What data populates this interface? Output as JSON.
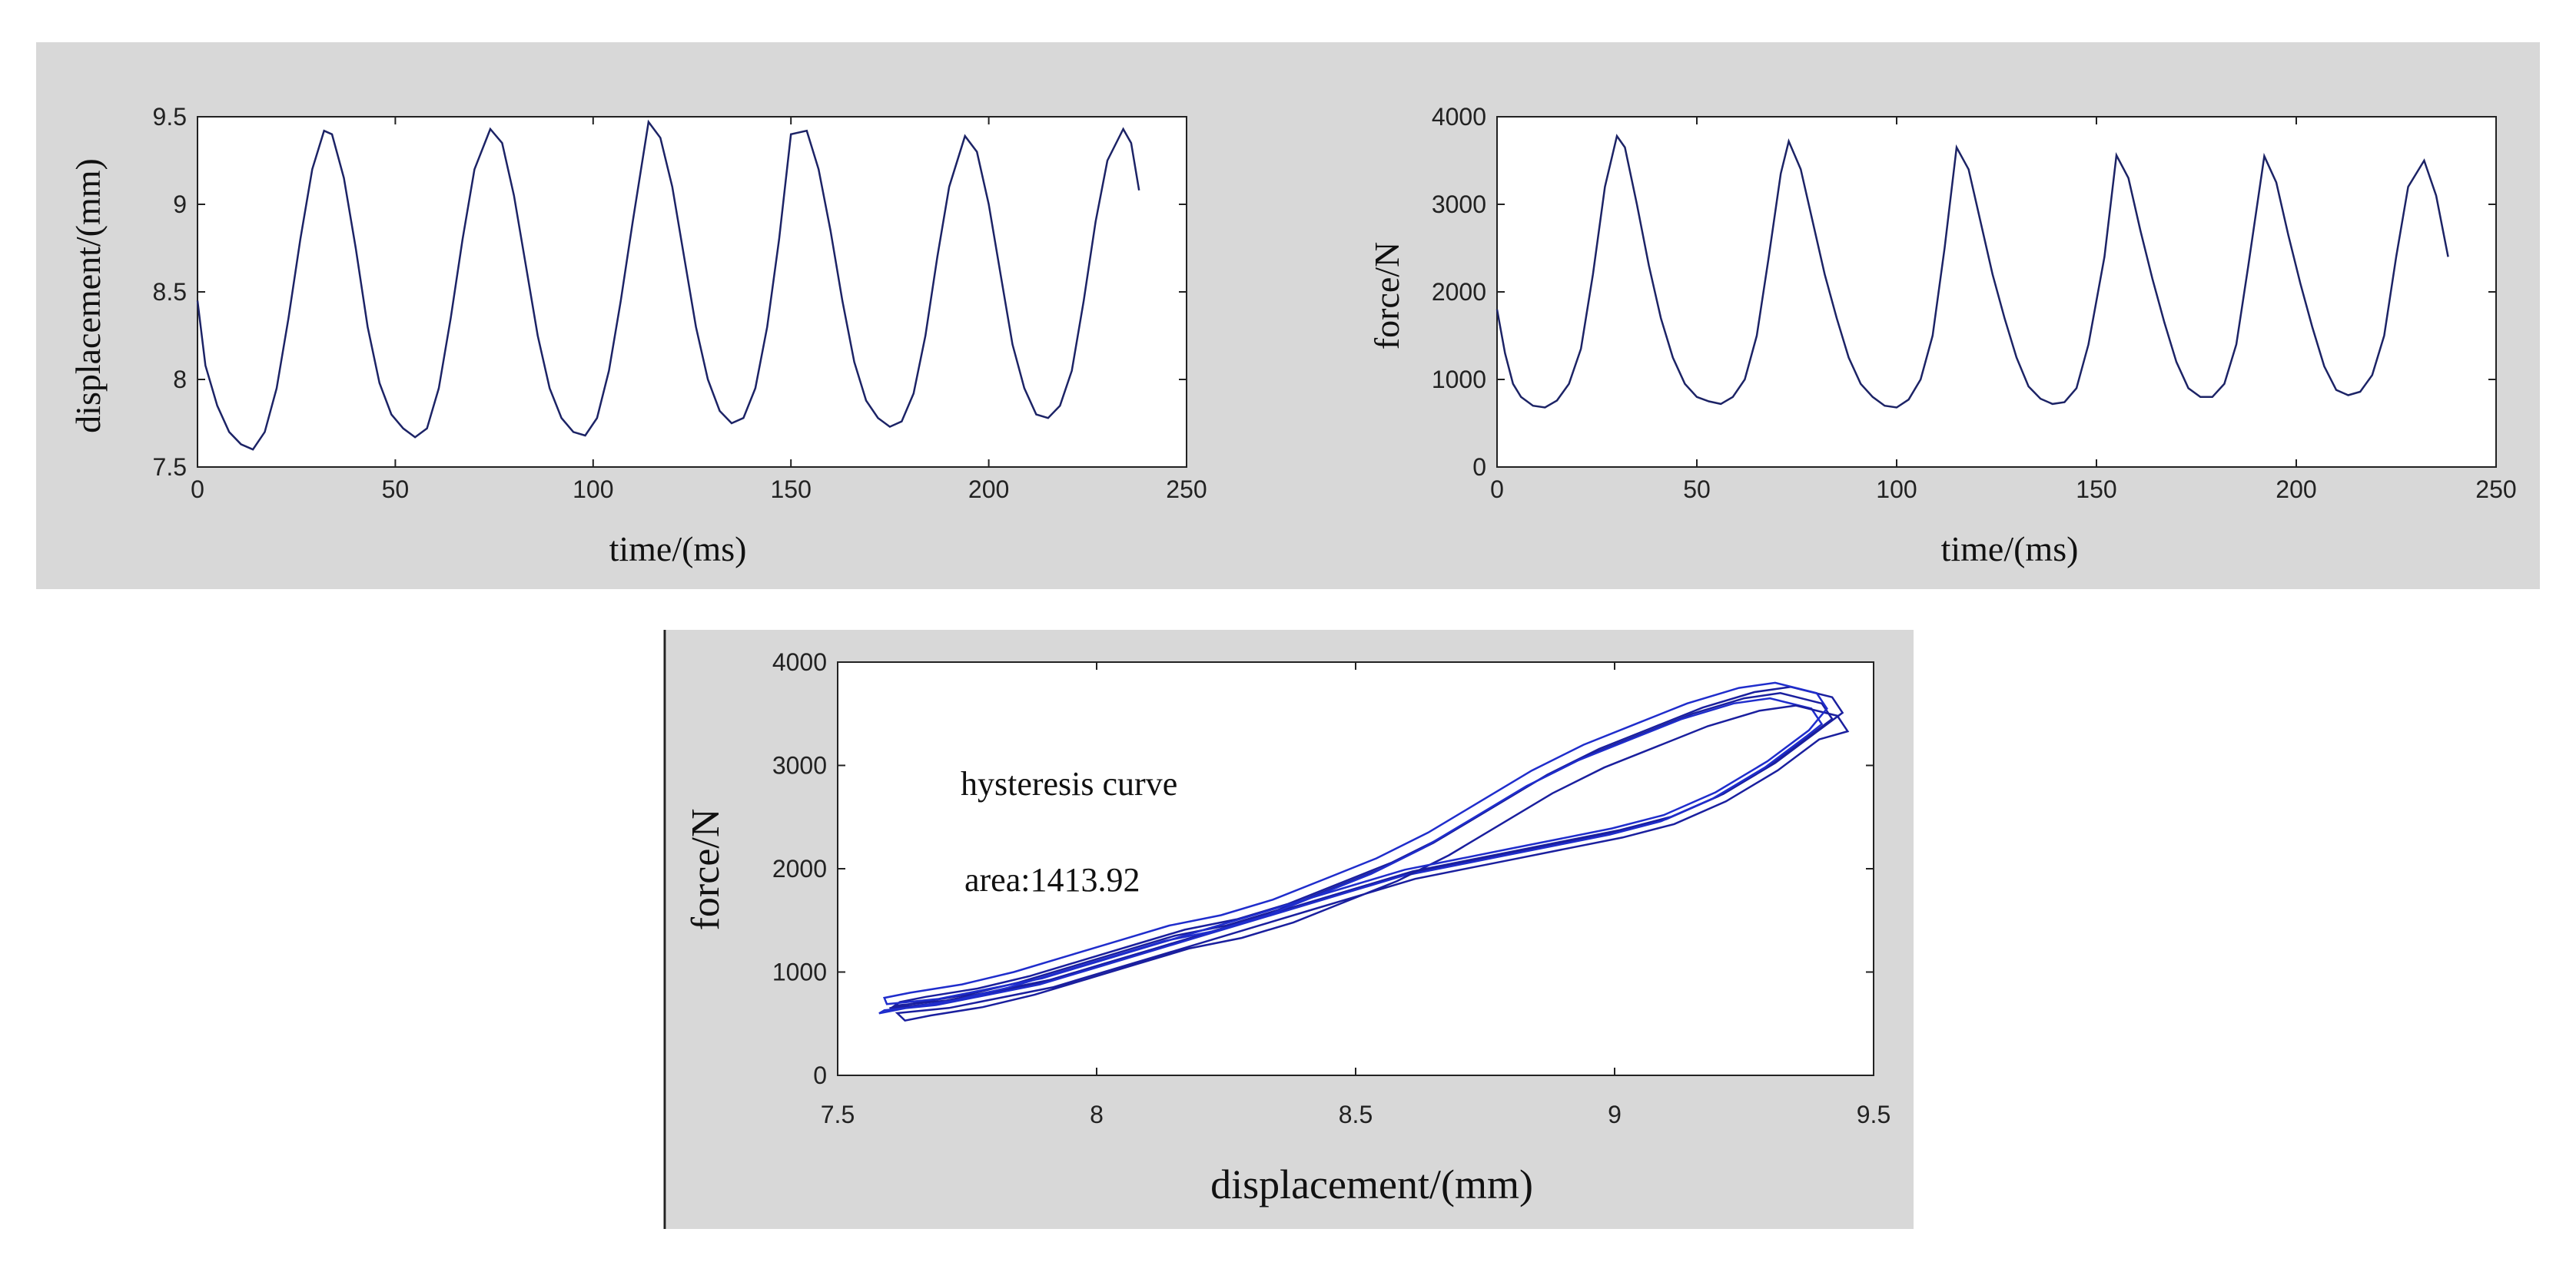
{
  "colors": {
    "panel_bg": "#d8d8d8",
    "plot_bg": "#ffffff",
    "axis": "#222222",
    "series_top": "#1c2366",
    "series_bottom": "#1a1f9e",
    "series_bottom_dense": "#1f2dcc"
  },
  "chart_data": [
    {
      "type": "line",
      "xlabel": "time/(ms)",
      "ylabel": "displacement/(mm)",
      "xlim": [
        0,
        250
      ],
      "ylim": [
        7.5,
        9.5
      ],
      "xticks": [
        0,
        50,
        100,
        150,
        200,
        250
      ],
      "xtick_labels": [
        "0",
        "50",
        "100",
        "150",
        "200",
        "250"
      ],
      "yticks": [
        7.5,
        8,
        8.5,
        9,
        9.5
      ],
      "ytick_labels": [
        "7.5",
        "8",
        "8.5",
        "9",
        "9.5"
      ],
      "grid": false,
      "series": [
        {
          "name": "displacement",
          "x": [
            0,
            2,
            5,
            8,
            11,
            14,
            17,
            20,
            23,
            26,
            29,
            32,
            34,
            37,
            40,
            43,
            46,
            49,
            52,
            55,
            58,
            61,
            64,
            67,
            70,
            74,
            77,
            80,
            83,
            86,
            89,
            92,
            95,
            98,
            101,
            104,
            107,
            110,
            114,
            117,
            120,
            123,
            126,
            129,
            132,
            135,
            138,
            141,
            144,
            147,
            150,
            154,
            157,
            160,
            163,
            166,
            169,
            172,
            175,
            178,
            181,
            184,
            187,
            190,
            194,
            197,
            200,
            203,
            206,
            209,
            212,
            215,
            218,
            221,
            224,
            227,
            230,
            234,
            236,
            238
          ],
          "y": [
            8.45,
            8.08,
            7.85,
            7.7,
            7.63,
            7.6,
            7.7,
            7.95,
            8.35,
            8.8,
            9.2,
            9.42,
            9.4,
            9.15,
            8.75,
            8.3,
            7.98,
            7.8,
            7.72,
            7.67,
            7.72,
            7.95,
            8.35,
            8.8,
            9.2,
            9.43,
            9.35,
            9.05,
            8.65,
            8.25,
            7.95,
            7.78,
            7.7,
            7.68,
            7.78,
            8.05,
            8.45,
            8.9,
            9.47,
            9.38,
            9.1,
            8.7,
            8.3,
            8.0,
            7.82,
            7.75,
            7.78,
            7.95,
            8.3,
            8.8,
            9.4,
            9.42,
            9.2,
            8.85,
            8.45,
            8.1,
            7.88,
            7.78,
            7.73,
            7.76,
            7.92,
            8.25,
            8.7,
            9.1,
            9.39,
            9.3,
            9.0,
            8.6,
            8.2,
            7.95,
            7.8,
            7.78,
            7.85,
            8.05,
            8.45,
            8.9,
            9.25,
            9.43,
            9.35,
            9.08
          ]
        }
      ]
    },
    {
      "type": "line",
      "xlabel": "time/(ms)",
      "ylabel": "force/N",
      "xlim": [
        0,
        250
      ],
      "ylim": [
        0,
        4000
      ],
      "xticks": [
        0,
        50,
        100,
        150,
        200,
        250
      ],
      "xtick_labels": [
        "0",
        "50",
        "100",
        "150",
        "200",
        "250"
      ],
      "yticks": [
        0,
        1000,
        2000,
        3000,
        4000
      ],
      "ytick_labels": [
        "0",
        "1000",
        "2000",
        "3000",
        "4000"
      ],
      "grid": false,
      "series": [
        {
          "name": "force",
          "x": [
            0,
            2,
            4,
            6,
            9,
            12,
            15,
            18,
            21,
            24,
            27,
            30,
            32,
            35,
            38,
            41,
            44,
            47,
            50,
            53,
            56,
            59,
            62,
            65,
            68,
            71,
            73,
            76,
            79,
            82,
            85,
            88,
            91,
            94,
            97,
            100,
            103,
            106,
            109,
            112,
            115,
            118,
            121,
            124,
            127,
            130,
            133,
            136,
            139,
            142,
            145,
            148,
            152,
            155,
            158,
            161,
            164,
            167,
            170,
            173,
            176,
            179,
            182,
            185,
            188,
            192,
            195,
            198,
            201,
            204,
            207,
            210,
            213,
            216,
            219,
            222,
            225,
            228,
            232,
            235,
            238
          ],
          "y": [
            1800,
            1300,
            950,
            800,
            700,
            680,
            760,
            950,
            1350,
            2200,
            3200,
            3780,
            3650,
            3000,
            2300,
            1700,
            1250,
            950,
            800,
            750,
            720,
            800,
            1000,
            1500,
            2400,
            3350,
            3720,
            3400,
            2800,
            2200,
            1700,
            1250,
            950,
            800,
            700,
            680,
            770,
            1000,
            1500,
            2500,
            3650,
            3400,
            2800,
            2200,
            1700,
            1250,
            920,
            780,
            720,
            740,
            900,
            1400,
            2400,
            3560,
            3300,
            2700,
            2150,
            1650,
            1200,
            900,
            800,
            800,
            950,
            1400,
            2300,
            3550,
            3250,
            2650,
            2100,
            1600,
            1150,
            880,
            820,
            860,
            1050,
            1500,
            2400,
            3200,
            3500,
            3100,
            2400
          ]
        }
      ]
    },
    {
      "type": "line",
      "xlabel": "displacement/(mm)",
      "ylabel": "force/N",
      "xlim": [
        7.5,
        9.5
      ],
      "ylim": [
        0,
        4000
      ],
      "xticks": [
        7.5,
        8,
        8.5,
        9,
        9.5
      ],
      "xtick_labels": [
        "7.5",
        "8",
        "8.5",
        "9",
        "9.5"
      ],
      "yticks": [
        0,
        1000,
        2000,
        3000,
        4000
      ],
      "ytick_labels": [
        "0",
        "1000",
        "2000",
        "3000",
        "4000"
      ],
      "grid": false,
      "annotations": [
        "hysteresis curve",
        "area:1413.92"
      ],
      "series": [
        {
          "name": "hysteresis loop",
          "x": [
            7.6,
            7.7,
            7.8,
            7.9,
            8.0,
            8.1,
            8.2,
            8.3,
            8.4,
            8.5,
            8.6,
            8.7,
            8.8,
            8.9,
            9.0,
            9.1,
            9.2,
            9.3,
            9.38,
            9.42,
            9.4,
            9.32,
            9.25,
            9.15,
            9.05,
            8.95,
            8.85,
            8.75,
            8.65,
            8.55,
            8.45,
            8.35,
            8.25,
            8.15,
            8.05,
            7.95,
            7.85,
            7.75,
            7.65,
            7.6
          ],
          "y": [
            650,
            700,
            800,
            900,
            1050,
            1200,
            1350,
            1500,
            1650,
            1800,
            1950,
            2050,
            2150,
            2250,
            2350,
            2480,
            2700,
            3000,
            3300,
            3450,
            3600,
            3700,
            3650,
            3500,
            3300,
            3100,
            2850,
            2550,
            2250,
            2000,
            1800,
            1600,
            1450,
            1350,
            1200,
            1050,
            900,
            780,
            700,
            650
          ]
        }
      ]
    }
  ]
}
